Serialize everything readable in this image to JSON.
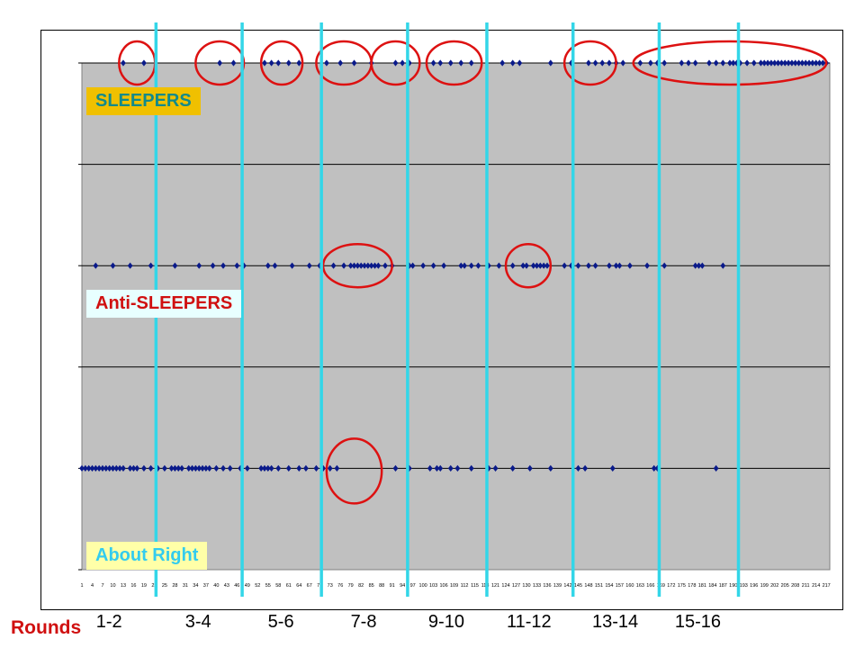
{
  "chart_data": {
    "type": "scatter",
    "x_tick_labels": [
      "1",
      "4",
      "7",
      "10",
      "13",
      "16",
      "19",
      "22",
      "25",
      "28",
      "31",
      "34",
      "37",
      "40",
      "43",
      "46",
      "49",
      "52",
      "55",
      "58",
      "61",
      "64",
      "67",
      "70",
      "73",
      "76",
      "79",
      "82",
      "85",
      "88",
      "91",
      "94",
      "97",
      "100",
      "103",
      "106",
      "109",
      "112",
      "115",
      "118",
      "121",
      "124",
      "127",
      "130",
      "133",
      "136",
      "139",
      "142",
      "145",
      "148",
      "151",
      "154",
      "157",
      "160",
      "163",
      "166",
      "169",
      "172",
      "175",
      "178",
      "181",
      "184",
      "187",
      "190",
      "193",
      "196",
      "199",
      "202",
      "205",
      "208",
      "211",
      "214",
      "217"
    ],
    "xlim": [
      1,
      218
    ],
    "ylim": [
      0,
      5
    ],
    "grid": true,
    "series": [
      {
        "name": "SLEEPERS",
        "y": 5,
        "x": [
          13,
          19,
          41,
          45,
          54,
          56,
          58,
          61,
          64,
          72,
          76,
          80,
          85,
          92,
          94,
          96,
          103,
          105,
          108,
          111,
          114,
          123,
          126,
          128,
          137,
          143,
          148,
          150,
          152,
          154,
          156,
          158,
          163,
          166,
          168,
          170,
          175,
          177,
          179,
          183,
          185,
          187,
          189,
          190,
          191,
          192,
          194,
          196,
          198,
          199,
          200,
          201,
          202,
          203,
          204,
          205,
          206,
          207,
          208,
          209,
          210,
          211,
          212,
          213,
          214,
          215,
          216,
          217
        ],
        "highlight_groups": [
          [
            13,
            21
          ],
          [
            34,
            48
          ],
          [
            53,
            65
          ],
          [
            69,
            85
          ],
          [
            85,
            99
          ],
          [
            101,
            117
          ],
          [
            141,
            156
          ],
          [
            161,
            217
          ]
        ]
      },
      {
        "name": "Anti-SLEEPERS",
        "y": 3,
        "x": [
          5,
          10,
          15,
          21,
          28,
          35,
          39,
          42,
          46,
          48,
          55,
          57,
          62,
          67,
          70,
          74,
          77,
          79,
          80,
          81,
          82,
          83,
          84,
          85,
          86,
          87,
          89,
          91,
          96,
          97,
          100,
          103,
          106,
          111,
          112,
          114,
          116,
          119,
          122,
          126,
          129,
          130,
          132,
          133,
          134,
          135,
          136,
          141,
          143,
          145,
          148,
          150,
          154,
          156,
          157,
          160,
          165,
          170,
          179,
          180,
          181,
          187
        ],
        "highlight_groups": [
          [
            71,
            91
          ],
          [
            124,
            137
          ]
        ]
      },
      {
        "name": "About Right",
        "y": 1,
        "x": [
          1,
          2,
          3,
          4,
          5,
          6,
          7,
          8,
          9,
          10,
          11,
          12,
          13,
          15,
          16,
          17,
          19,
          21,
          23,
          25,
          27,
          28,
          29,
          30,
          32,
          33,
          34,
          35,
          36,
          37,
          38,
          40,
          42,
          44,
          47,
          49,
          53,
          54,
          55,
          56,
          58,
          61,
          64,
          66,
          69,
          71,
          73,
          75,
          92,
          96,
          102,
          104,
          105,
          108,
          110,
          114,
          119,
          121,
          126,
          131,
          137,
          145,
          147,
          155,
          167,
          168,
          185
        ],
        "highlight_groups": [
          [
            72,
            88
          ]
        ]
      }
    ],
    "round_boundaries": [
      22.5,
      47.5,
      70.5,
      95.5,
      118.5,
      143.5,
      168.5,
      191.5
    ],
    "round_labels": [
      "1-2",
      "3-4",
      "5-6",
      "7-8",
      "9-10",
      "11-12",
      "13-14",
      "15-16"
    ],
    "xlabel": "Rounds"
  },
  "colors": {
    "plot_bg": "#c0c0c0",
    "marker": "#0a1a8a",
    "circle": "#dd1111",
    "round_line": "#33d6e8",
    "sleepers_label_bg": "#f0c000",
    "sleepers_label_fg": "#138a8a",
    "anti_label_bg": "#e8ffff",
    "anti_label_fg": "#d01010",
    "about_label_bg": "#ffffa8",
    "about_label_fg": "#33ccee"
  }
}
